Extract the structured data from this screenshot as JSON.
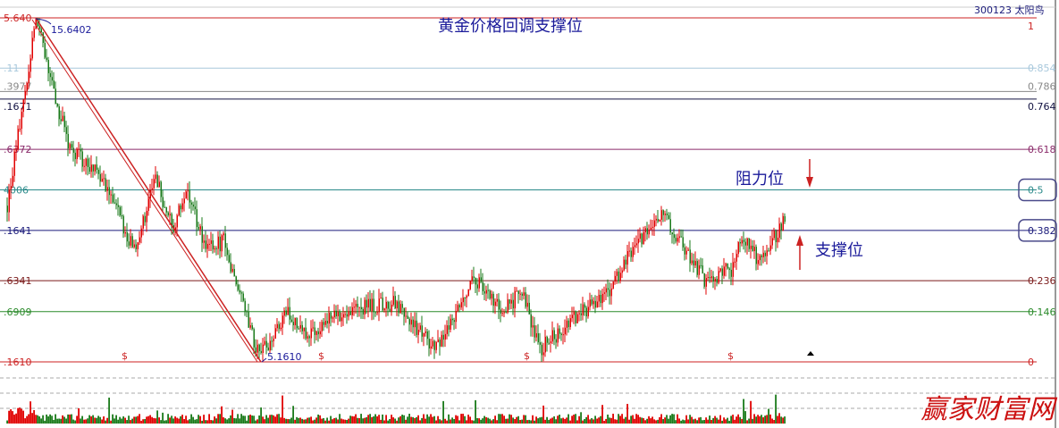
{
  "header": {
    "stock": "300123 太阳鸟"
  },
  "annotations": {
    "title": "黄金价格回调支撑位",
    "resistance": "阻力位",
    "support": "支撑位",
    "high_label": "15.6402",
    "low_label": "5.1610",
    "dollar_marker": "$",
    "watermark": "赢家财富网"
  },
  "colors": {
    "up": "#e00000",
    "down": "#1a7a1a",
    "trend_line": "#cc2222",
    "box": "#4a4a8a"
  },
  "chart_data": {
    "type": "candlestick",
    "title": "黄金价格回调支撑位",
    "high": 15.6402,
    "low": 5.161,
    "ylim": [
      5.161,
      15.6402
    ],
    "fib_levels": [
      {
        "ratio": 1,
        "right_label": "1",
        "left_label": "5.640",
        "color": "#cc2222"
      },
      {
        "ratio": 0.854,
        "right_label": "0.854",
        "left_label": ".11",
        "color": "#a8c8dc"
      },
      {
        "ratio": 0.786,
        "right_label": "0.786",
        "left_label": ".3977",
        "color": "#888888"
      },
      {
        "ratio": 0.764,
        "right_label": "0.764",
        "left_label": ".1671",
        "color": "#101040"
      },
      {
        "ratio": 0.618,
        "right_label": "0.618",
        "left_label": ".6372",
        "color": "#8a2a6a"
      },
      {
        "ratio": 0.5,
        "right_label": "0.5",
        "left_label": "4006",
        "color": "#2a8a8a",
        "boxed": true
      },
      {
        "ratio": 0.382,
        "right_label": "0.382",
        "left_label": ".1641",
        "color": "#1a1a7a",
        "boxed": true
      },
      {
        "ratio": 0.236,
        "right_label": "0.236",
        "left_label": ".6341",
        "color": "#7a1a1a"
      },
      {
        "ratio": 0.146,
        "right_label": "0.146",
        "left_label": ".6909",
        "color": "#2a8a2a"
      },
      {
        "ratio": 0,
        "right_label": "0",
        "left_label": ".1610",
        "color": "#cc2222"
      }
    ],
    "price_path": [
      [
        0,
        9.92
      ],
      [
        16,
        15.64
      ],
      [
        28,
        12.92
      ],
      [
        36,
        11.56
      ],
      [
        51,
        11.0
      ],
      [
        71,
        8.56
      ],
      [
        83,
        10.74
      ],
      [
        93,
        9.11
      ],
      [
        100,
        10.47
      ],
      [
        111,
        8.56
      ],
      [
        121,
        8.83
      ],
      [
        141,
        5.3
      ],
      [
        156,
        6.66
      ],
      [
        166,
        5.98
      ],
      [
        191,
        6.8
      ],
      [
        216,
        6.93
      ],
      [
        240,
        5.57
      ],
      [
        261,
        7.75
      ],
      [
        276,
        6.8
      ],
      [
        288,
        7.2
      ],
      [
        298,
        5.57
      ],
      [
        321,
        6.66
      ],
      [
        336,
        7.2
      ],
      [
        346,
        8.29
      ],
      [
        366,
        9.65
      ],
      [
        376,
        8.83
      ],
      [
        391,
        7.61
      ],
      [
        406,
        8.02
      ],
      [
        411,
        9.11
      ],
      [
        421,
        8.16
      ],
      [
        435,
        9.52
      ]
    ],
    "dollar_marker_days": [
      66,
      176,
      291,
      405
    ]
  }
}
